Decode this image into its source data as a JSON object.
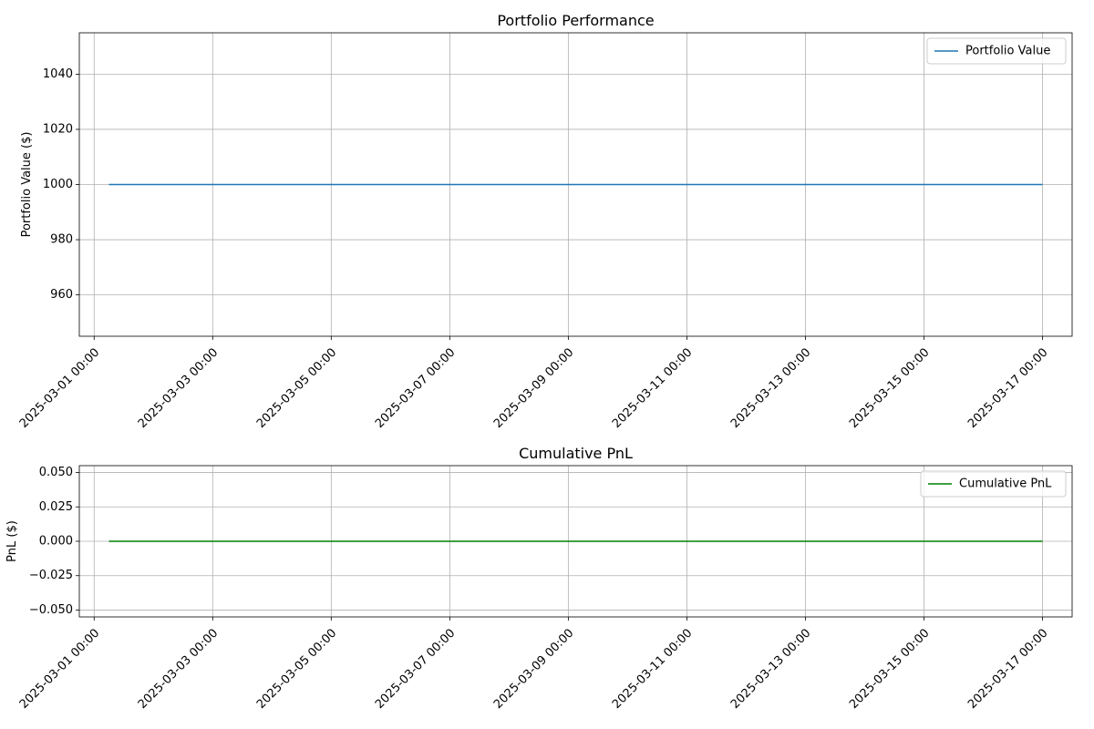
{
  "chart_data": [
    {
      "type": "line",
      "title": "Portfolio Performance",
      "xlabel": "",
      "ylabel": "Portfolio Value ($)",
      "x": [
        "2025-03-01 06:00",
        "2025-03-17 00:00"
      ],
      "xlim": [
        "2025-02-28 18:00",
        "2025-03-17 12:00"
      ],
      "xticks": [
        "2025-03-01 00:00",
        "2025-03-03 00:00",
        "2025-03-05 00:00",
        "2025-03-07 00:00",
        "2025-03-09 00:00",
        "2025-03-11 00:00",
        "2025-03-13 00:00",
        "2025-03-15 00:00",
        "2025-03-17 00:00"
      ],
      "ylim": [
        945,
        1055
      ],
      "yticks": [
        960,
        980,
        1000,
        1020,
        1040
      ],
      "ytick_labels": [
        "960",
        "980",
        "1000",
        "1020",
        "1040"
      ],
      "series": [
        {
          "name": "Portfolio Value",
          "color": "#1f77b4",
          "values": [
            1000,
            1000
          ]
        }
      ],
      "legend_loc": "upper right",
      "grid": true
    },
    {
      "type": "line",
      "title": "Cumulative PnL",
      "xlabel": "",
      "ylabel": "PnL ($)",
      "x": [
        "2025-03-01 06:00",
        "2025-03-17 00:00"
      ],
      "xlim": [
        "2025-02-28 18:00",
        "2025-03-17 12:00"
      ],
      "xticks": [
        "2025-03-01 00:00",
        "2025-03-03 00:00",
        "2025-03-05 00:00",
        "2025-03-07 00:00",
        "2025-03-09 00:00",
        "2025-03-11 00:00",
        "2025-03-13 00:00",
        "2025-03-15 00:00",
        "2025-03-17 00:00"
      ],
      "ylim": [
        -0.055,
        0.055
      ],
      "yticks": [
        -0.05,
        -0.025,
        0,
        0.025,
        0.05
      ],
      "ytick_labels": [
        "−0.050",
        "−0.025",
        "0.000",
        "0.025",
        "0.050"
      ],
      "series": [
        {
          "name": "Cumulative PnL",
          "color": "#008000",
          "values": [
            0,
            0
          ]
        }
      ],
      "legend_loc": "upper right",
      "grid": true
    }
  ]
}
